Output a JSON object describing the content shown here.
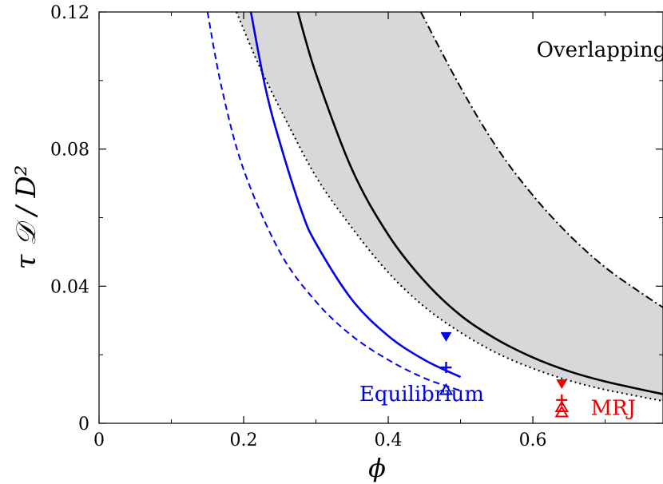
{
  "chart_data": {
    "type": "line",
    "xlabel": "ϕ",
    "ylabel": "τ 𝒟 / D²",
    "xlim": [
      0,
      0.78
    ],
    "ylim": [
      0,
      0.12
    ],
    "xticks": [
      0,
      0.2,
      0.4,
      0.6
    ],
    "xtick_labels": [
      "0",
      "0.2",
      "0.4",
      "0.6"
    ],
    "yticks": [
      0,
      0.04,
      0.08,
      0.12
    ],
    "ytick_labels": [
      "0",
      "0.04",
      "0.08",
      "0.12"
    ],
    "grid": false,
    "colors": {
      "blue": "#0000ee",
      "red": "#ee0000",
      "black": "#000000",
      "band_fill": "#d8d8d8"
    },
    "annotations": [
      {
        "text": "Overlapping",
        "x": 0.605,
        "y": 0.107,
        "color": "#000000"
      },
      {
        "text": "Equilibrium",
        "x": 0.36,
        "y": 0.0065,
        "color": "#0000ee"
      },
      {
        "text": "MRJ",
        "x": 0.68,
        "y": 0.0025,
        "color": "#ee0000"
      }
    ],
    "series": [
      {
        "style": "dashed",
        "color": "#0000ee",
        "x": [
          0.15,
          0.17,
          0.2,
          0.25,
          0.3,
          0.35,
          0.4,
          0.45,
          0.5
        ],
        "y": [
          0.12,
          0.0975,
          0.074,
          0.05,
          0.0355,
          0.0255,
          0.0185,
          0.0132,
          0.0095
        ]
      },
      {
        "style": "solid",
        "color": "#0000ee",
        "x": [
          0.21,
          0.23,
          0.25,
          0.28,
          0.3,
          0.35,
          0.4,
          0.45,
          0.5
        ],
        "y": [
          0.12,
          0.098,
          0.082,
          0.062,
          0.0525,
          0.036,
          0.0255,
          0.0185,
          0.0135
        ]
      },
      {
        "style": "dotted",
        "color": "#000000",
        "x": [
          0.19,
          0.22,
          0.25,
          0.3,
          0.35,
          0.4,
          0.45,
          0.5,
          0.55,
          0.6,
          0.65,
          0.7,
          0.78
        ],
        "y": [
          0.12,
          0.105,
          0.092,
          0.072,
          0.057,
          0.044,
          0.034,
          0.0265,
          0.0205,
          0.016,
          0.0125,
          0.0098,
          0.0065
        ]
      },
      {
        "style": "solid",
        "color": "#000000",
        "x": [
          0.275,
          0.3,
          0.35,
          0.4,
          0.45,
          0.5,
          0.55,
          0.6,
          0.65,
          0.7,
          0.78
        ],
        "y": [
          0.12,
          0.102,
          0.074,
          0.055,
          0.0415,
          0.0315,
          0.0245,
          0.0192,
          0.0152,
          0.0122,
          0.0085
        ]
      },
      {
        "style": "dashdot",
        "color": "#000000",
        "x": [
          0.445,
          0.5,
          0.55,
          0.6,
          0.65,
          0.7,
          0.75,
          0.78
        ],
        "y": [
          0.12,
          0.098,
          0.0805,
          0.0665,
          0.055,
          0.0455,
          0.038,
          0.0338
        ]
      }
    ],
    "markers": [
      {
        "shape": "triangle-down-filled",
        "x": 0.48,
        "y": 0.0253,
        "color": "#0000ee"
      },
      {
        "shape": "plus",
        "x": 0.48,
        "y": 0.0163,
        "color": "#0000ee"
      },
      {
        "shape": "triangle-up-open",
        "x": 0.48,
        "y": 0.0098,
        "color": "#0000ee"
      },
      {
        "shape": "triangle-down-filled",
        "x": 0.64,
        "y": 0.0115,
        "color": "#ee0000"
      },
      {
        "shape": "plus",
        "x": 0.64,
        "y": 0.0068,
        "color": "#ee0000"
      },
      {
        "shape": "triangle-up-open",
        "x": 0.64,
        "y": 0.0048,
        "color": "#ee0000"
      },
      {
        "shape": "triangle-up-open",
        "x": 0.64,
        "y": 0.0033,
        "color": "#ee0000"
      }
    ]
  }
}
